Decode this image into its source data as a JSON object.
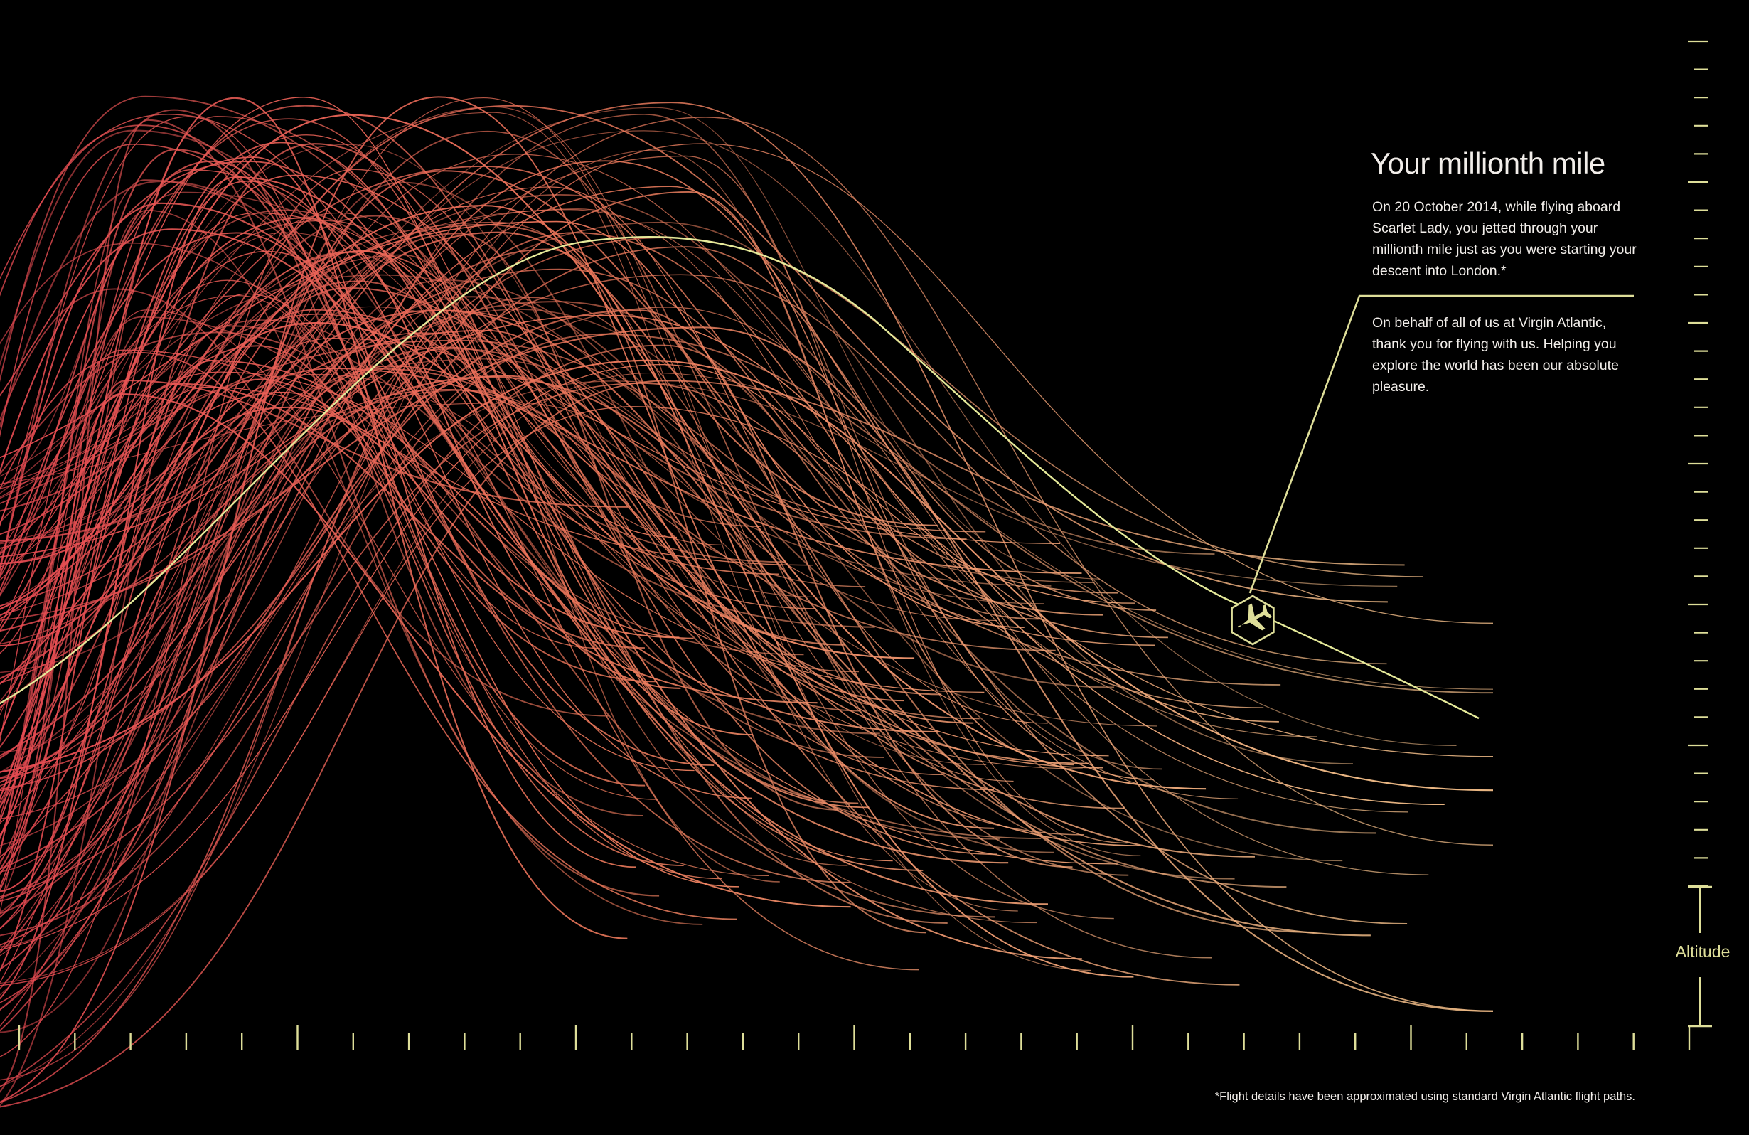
{
  "colors": {
    "background": "#000000",
    "path_start": "#e84a52",
    "path_end": "#f6c08a",
    "highlight": "#e6ea9a",
    "annotation": "#dede99",
    "text": "#f2eeea"
  },
  "annotation": {
    "title": "Your millionth mile",
    "paragraph_1": "On 20 October 2014, while flying aboard Scarlet Lady, you jetted through your millionth mile just as you were starting your descent into London.*",
    "paragraph_2": "On behalf of all of us at Virgin Atlantic, thank you for flying with us. Helping you explore the world has been our absolute pleasure.",
    "icon": "plane-icon"
  },
  "footnote": "*Flight details have been approximated using standard Virgin Atlantic flight paths.",
  "y_axis_label": "Altitude",
  "chart_data": {
    "type": "line",
    "description_of_marks": "Bundle of flight altitude profiles; one highlighted flight marks the millionth mile",
    "series": [
      {
        "highlighted": false,
        "count": 150
      },
      {
        "highlighted": true,
        "count": 1
      }
    ],
    "xlabel": "",
    "ylabel": "Altitude",
    "x_tick_count": 31,
    "y_tick_count": 31,
    "grid": false
  }
}
